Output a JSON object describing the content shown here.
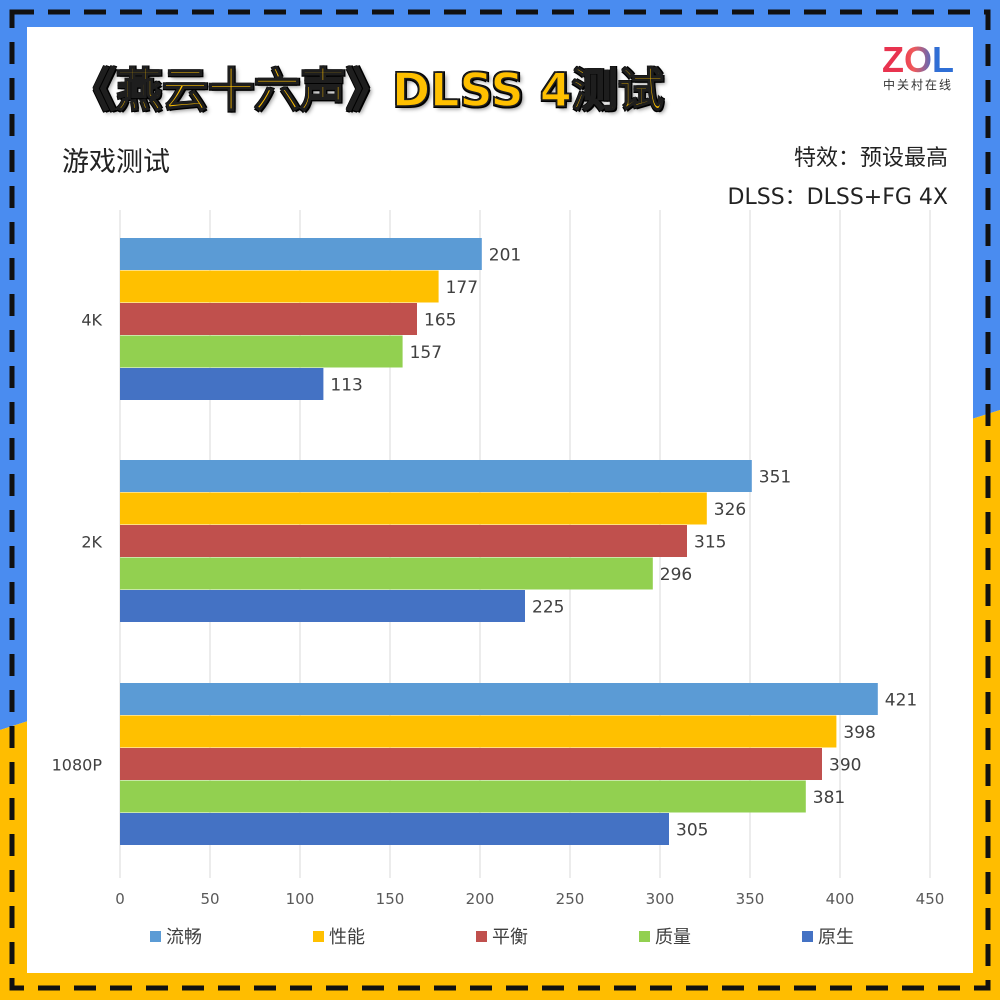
{
  "title": "《燕云十六声》DLSS 4测试",
  "logo": {
    "text": "ZOL",
    "subtext": "中关村在线"
  },
  "subtitle": "游戏测试",
  "notes": {
    "effects": "特效：预设最高",
    "dlss": "DLSS：DLSS+FG 4X"
  },
  "colors": {
    "frame_blue": "#4a8cf0",
    "frame_yellow": "#ffbd00",
    "dash": "#111111",
    "title_fill": "#ffc000"
  },
  "chart_data": {
    "type": "bar",
    "orientation": "horizontal",
    "categories": [
      "4K",
      "2K",
      "1080P"
    ],
    "series": [
      {
        "name": "流畅",
        "color": "#5b9bd5",
        "values": [
          201,
          351,
          421
        ]
      },
      {
        "name": "性能",
        "color": "#ffc000",
        "values": [
          177,
          326,
          398
        ]
      },
      {
        "name": "平衡",
        "color": "#c0504d",
        "values": [
          165,
          315,
          390
        ]
      },
      {
        "name": "质量",
        "color": "#92d050",
        "values": [
          157,
          296,
          381
        ]
      },
      {
        "name": "原生",
        "color": "#4472c4",
        "values": [
          113,
          225,
          305
        ]
      }
    ],
    "xlim": [
      0,
      450
    ],
    "xticks": [
      0,
      50,
      100,
      150,
      200,
      250,
      300,
      350,
      400,
      450
    ],
    "grid": true,
    "legend": "bottom",
    "data_labels": true
  }
}
